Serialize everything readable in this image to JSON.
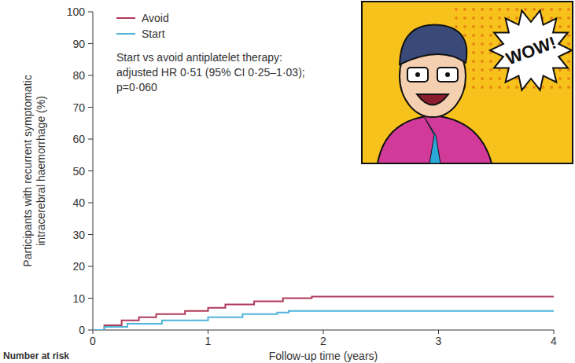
{
  "chart_data": {
    "type": "line",
    "line_style": "step",
    "y_label": "Participants with recurrent symptomatic intracerebral haemorrhage (%)",
    "x_label": "Follow-up time (years)",
    "annotation": [
      "Start vs avoid antiplatelet therapy:",
      "adjusted HR 0·51 (95% CI 0·25–1·03);",
      "p=0·060"
    ],
    "footer_text": "Number at risk",
    "image_text": "WOW!",
    "legend": "top-left",
    "grid": false,
    "xlim": [
      0,
      4
    ],
    "xticks": [
      0,
      1,
      2,
      3,
      4
    ],
    "ylim": [
      0,
      100
    ],
    "yticks": [
      0,
      10,
      20,
      30,
      40,
      50,
      60,
      70,
      80,
      90,
      100
    ],
    "series": [
      {
        "name": "Avoid",
        "color": "#b03a5b",
        "x": [
          0,
          0.1,
          0.25,
          0.4,
          0.55,
          0.8,
          1.0,
          1.15,
          1.4,
          1.65,
          1.9,
          4
        ],
        "values": [
          0,
          1.5,
          3,
          4,
          5,
          6,
          7,
          8,
          9,
          10,
          10.5,
          10.5
        ]
      },
      {
        "name": "Start",
        "color": "#4fb3d9",
        "x": [
          0,
          0.1,
          0.3,
          0.6,
          1.0,
          1.3,
          1.6,
          1.7,
          4
        ],
        "values": [
          0,
          1,
          2,
          3,
          4,
          5,
          5.5,
          6,
          6
        ]
      }
    ]
  }
}
